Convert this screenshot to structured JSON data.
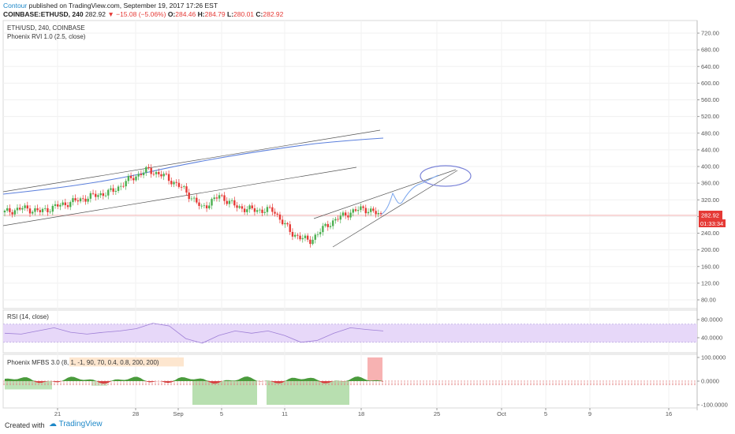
{
  "header": {
    "author": "Contour",
    "published_text": "published on TradingView.com, September 19, 2017 17:26 EST",
    "symbol": "COINBASE:ETHUSD, 240",
    "last": "282.92",
    "change": "−15.08 (−5.06%)",
    "o_label": "O:",
    "o_value": "284.46",
    "h_label": "H:",
    "h_value": "284.79",
    "l_label": "L:",
    "l_value": "280.01",
    "c_label": "C:",
    "c_value": "282.92"
  },
  "main_pane": {
    "title": "ETH/USD, 240, COINBASE",
    "indicator": "Phoenix RVI 1.0 (2.5, close)",
    "price_label": "282.92",
    "countdown_label": "01:33:34"
  },
  "rsi_pane": {
    "title": "RSI (14, close)"
  },
  "mfbs_pane": {
    "title": "Phoenix MFBS 3.0 (8, 1, -1, 90, 70, 0.4, 0.8, 200, 200)"
  },
  "footer": {
    "created_with": "Created with",
    "brand": "TradingView"
  },
  "colors": {
    "up": "#4caf50",
    "down": "#e53935",
    "rsi_fill": "#e7d8f9",
    "accent": "#1e88c8"
  },
  "chart_data": [
    {
      "type": "candlestick",
      "title": "ETH/USD, 240, COINBASE",
      "ylim": [
        60,
        740
      ],
      "y_ticks": [
        "720.00",
        "680.00",
        "640.00",
        "600.00",
        "560.00",
        "520.00",
        "480.00",
        "440.00",
        "400.00",
        "360.00",
        "320.00",
        "280.00",
        "240.00",
        "200.00",
        "160.00",
        "120.00",
        "80.00"
      ],
      "x_ticks": [
        "21",
        "28",
        "Sep",
        "5",
        "11",
        "18",
        "25",
        "Oct",
        "5",
        "9",
        "16"
      ],
      "close_path": [
        {
          "x": "Aug 16",
          "y": 290
        },
        {
          "x": "Aug 18",
          "y": 300
        },
        {
          "x": "Aug 20",
          "y": 292
        },
        {
          "x": "Aug 22",
          "y": 306
        },
        {
          "x": "Aug 24",
          "y": 318
        },
        {
          "x": "Aug 26",
          "y": 330
        },
        {
          "x": "Aug 28",
          "y": 340
        },
        {
          "x": "Aug 30",
          "y": 370
        },
        {
          "x": "Sep 1",
          "y": 392
        },
        {
          "x": "Sep 2",
          "y": 375
        },
        {
          "x": "Sep 3",
          "y": 345
        },
        {
          "x": "Sep 5",
          "y": 300
        },
        {
          "x": "Sep 7",
          "y": 330
        },
        {
          "x": "Sep 9",
          "y": 302
        },
        {
          "x": "Sep 11",
          "y": 295
        },
        {
          "x": "Sep 13",
          "y": 295
        },
        {
          "x": "Sep 14",
          "y": 240
        },
        {
          "x": "Sep 15",
          "y": 220
        },
        {
          "x": "Sep 16",
          "y": 260
        },
        {
          "x": "Sep 17",
          "y": 285
        },
        {
          "x": "Sep 18",
          "y": 300
        },
        {
          "x": "Sep 19",
          "y": 283
        }
      ]
    },
    {
      "type": "line",
      "title": "RSI (14, close)",
      "ylim": [
        15,
        100
      ],
      "y_ticks": [
        "80.0000",
        "40.0000"
      ],
      "band": [
        30,
        70
      ],
      "values": [
        50,
        48,
        55,
        62,
        52,
        48,
        52,
        55,
        60,
        72,
        66,
        38,
        28,
        45,
        55,
        50,
        55,
        45,
        30,
        34,
        50,
        62,
        58,
        55
      ]
    },
    {
      "type": "area",
      "title": "Phoenix MFBS 3.0 (8, 1, -1, 90, 70, 0.4, 0.8, 200, 200)",
      "ylim": [
        -130,
        130
      ],
      "y_ticks": [
        "100.0000",
        "0.0000",
        "-100.0000"
      ]
    }
  ]
}
